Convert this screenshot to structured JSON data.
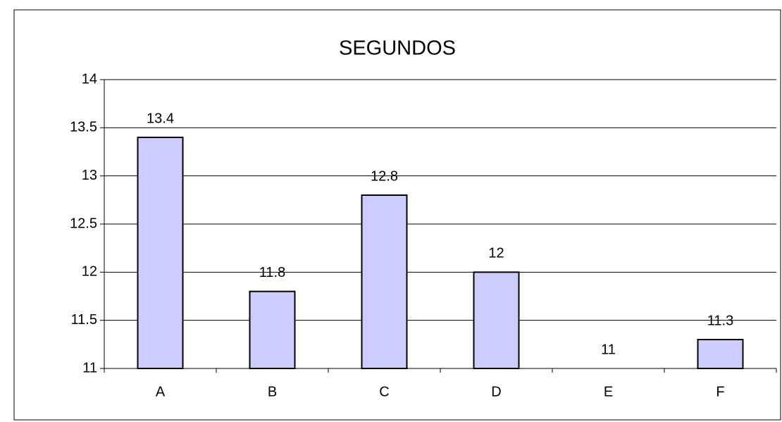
{
  "chart_data": {
    "type": "bar",
    "title": "SEGUNDOS",
    "categories": [
      "A",
      "B",
      "C",
      "D",
      "E",
      "F"
    ],
    "values": [
      13.4,
      11.8,
      12.8,
      12,
      11,
      11.3
    ],
    "color": "#ccccff",
    "ylim": [
      11,
      14
    ],
    "yticks": [
      11,
      11.5,
      12,
      12.5,
      13,
      13.5,
      14
    ],
    "grid": true
  }
}
